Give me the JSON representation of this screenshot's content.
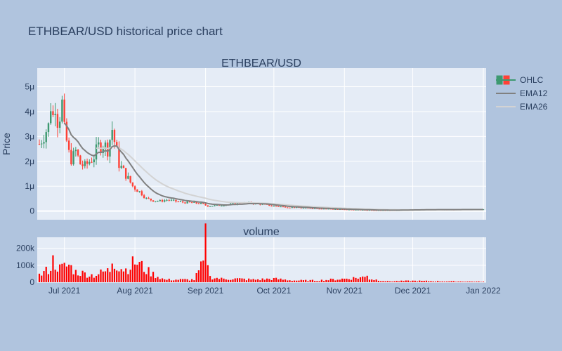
{
  "colors": {
    "background": "#b0c4de",
    "plot_bg": "#e5ecf6",
    "grid": "#ffffff",
    "increasing": "#3d9970",
    "decreasing": "#ff4136",
    "ema12": "#808080",
    "ema26": "#d3d3d3",
    "volume": "#ff0000",
    "text": "#2a3f5f"
  },
  "chart_data": [
    {
      "type": "candlestick",
      "title": "ETHBEAR/USD historical price chart",
      "subtitle": "ETHBEAR/USD",
      "ylabel": "Price",
      "ylim": [
        -3.5e-07,
        5.75e-06
      ],
      "yticks": [
        {
          "value": 0,
          "label": "0"
        },
        {
          "value": 1e-06,
          "label": "1μ"
        },
        {
          "value": 2e-06,
          "label": "2μ"
        },
        {
          "value": 3e-06,
          "label": "3μ"
        },
        {
          "value": 4e-06,
          "label": "4μ"
        },
        {
          "value": 5e-06,
          "label": "5μ"
        }
      ],
      "legend": {
        "placement": "top-right",
        "entries": [
          "OHLC",
          "EMA12",
          "EMA26"
        ]
      },
      "x_start": "2021-06-20",
      "x_end": "2022-01-01",
      "grid": true,
      "close_by_date": [
        [
          "2021-06-20",
          2.7e-06
        ],
        [
          "2021-06-22",
          3.1e-06
        ],
        [
          "2021-06-24",
          3.4e-06
        ],
        [
          "2021-06-25",
          4.3e-06
        ],
        [
          "2021-06-26",
          3.8e-06
        ],
        [
          "2021-06-27",
          4.4e-06
        ],
        [
          "2021-06-28",
          3.7e-06
        ],
        [
          "2021-06-29",
          3.9e-06
        ],
        [
          "2021-06-30",
          4.3e-06
        ],
        [
          "2021-07-01",
          3.2e-06
        ],
        [
          "2021-07-02",
          2.8e-06
        ],
        [
          "2021-07-03",
          2.3e-06
        ],
        [
          "2021-07-04",
          2.1e-06
        ],
        [
          "2021-07-05",
          2.2e-06
        ],
        [
          "2021-07-06",
          2.4e-06
        ],
        [
          "2021-07-08",
          1.9e-06
        ],
        [
          "2021-07-10",
          1.8e-06
        ],
        [
          "2021-07-12",
          2e-06
        ],
        [
          "2021-07-14",
          2.2e-06
        ],
        [
          "2021-07-16",
          2.6e-06
        ],
        [
          "2021-07-18",
          2.7e-06
        ],
        [
          "2021-07-20",
          2.5e-06
        ],
        [
          "2021-07-22",
          3.3e-06
        ],
        [
          "2021-07-23",
          2.8e-06
        ],
        [
          "2021-07-25",
          1.9e-06
        ],
        [
          "2021-07-27",
          1.6e-06
        ],
        [
          "2021-07-29",
          1.3e-06
        ],
        [
          "2021-07-31",
          1e-06
        ],
        [
          "2021-08-02",
          8.5e-07
        ],
        [
          "2021-08-04",
          7e-07
        ],
        [
          "2021-08-06",
          5e-07
        ],
        [
          "2021-08-09",
          4.2e-07
        ],
        [
          "2021-08-12",
          4e-07
        ],
        [
          "2021-08-15",
          4.5e-07
        ],
        [
          "2021-08-18",
          4e-07
        ],
        [
          "2021-08-22",
          3.5e-07
        ],
        [
          "2021-08-26",
          3.3e-07
        ],
        [
          "2021-08-30",
          3e-07
        ],
        [
          "2021-09-02",
          2e-07
        ],
        [
          "2021-09-06",
          2.2e-07
        ],
        [
          "2021-09-10",
          2.5e-07
        ],
        [
          "2021-09-15",
          3e-07
        ],
        [
          "2021-09-20",
          3.2e-07
        ],
        [
          "2021-09-25",
          2.8e-07
        ],
        [
          "2021-10-01",
          2e-07
        ],
        [
          "2021-10-08",
          1.5e-07
        ],
        [
          "2021-10-15",
          1.2e-07
        ],
        [
          "2021-10-22",
          1e-07
        ],
        [
          "2021-11-01",
          6e-08
        ],
        [
          "2021-11-10",
          4e-08
        ],
        [
          "2021-11-20",
          3e-08
        ],
        [
          "2021-12-01",
          5e-08
        ],
        [
          "2021-12-15",
          6e-08
        ],
        [
          "2022-01-01",
          6e-08
        ]
      ]
    },
    {
      "type": "bar",
      "title": "volume",
      "ylim": [
        0,
        265000
      ],
      "yticks": [
        {
          "value": 0,
          "label": "0"
        },
        {
          "value": 100000,
          "label": "100k"
        },
        {
          "value": 200000,
          "label": "200k"
        }
      ],
      "xticks": [
        {
          "date": "2021-07-01",
          "label": "Jul 2021"
        },
        {
          "date": "2021-08-01",
          "label": "Aug 2021"
        },
        {
          "date": "2021-09-01",
          "label": "Sep 2021"
        },
        {
          "date": "2021-10-01",
          "label": "Oct 2021"
        },
        {
          "date": "2021-11-01",
          "label": "Nov 2021"
        },
        {
          "date": "2021-12-01",
          "label": "Dec 2021"
        },
        {
          "date": "2022-01-01",
          "label": "Jan 2022"
        }
      ],
      "volume_by_date": [
        [
          "2021-06-20",
          40000
        ],
        [
          "2021-06-24",
          75000
        ],
        [
          "2021-06-25",
          90000
        ],
        [
          "2021-06-26",
          125000
        ],
        [
          "2021-06-29",
          80000
        ],
        [
          "2021-07-03",
          100000
        ],
        [
          "2021-07-06",
          60000
        ],
        [
          "2021-07-10",
          50000
        ],
        [
          "2021-07-14",
          40000
        ],
        [
          "2021-07-18",
          60000
        ],
        [
          "2021-07-21",
          70000
        ],
        [
          "2021-07-22",
          135000
        ],
        [
          "2021-07-25",
          90000
        ],
        [
          "2021-07-28",
          75000
        ],
        [
          "2021-08-01",
          120000
        ],
        [
          "2021-08-03",
          105000
        ],
        [
          "2021-08-06",
          70000
        ],
        [
          "2021-08-10",
          40000
        ],
        [
          "2021-08-14",
          15000
        ],
        [
          "2021-08-20",
          15000
        ],
        [
          "2021-08-27",
          15000
        ],
        [
          "2021-08-31",
          110000
        ],
        [
          "2021-09-01",
          250000
        ],
        [
          "2021-09-03",
          30000
        ],
        [
          "2021-09-08",
          20000
        ],
        [
          "2021-09-15",
          20000
        ],
        [
          "2021-09-22",
          15000
        ],
        [
          "2021-10-01",
          20000
        ],
        [
          "2021-10-10",
          10000
        ],
        [
          "2021-10-20",
          10000
        ],
        [
          "2021-11-01",
          20000
        ],
        [
          "2021-11-10",
          30000
        ],
        [
          "2021-11-11",
          50000
        ],
        [
          "2021-11-12",
          20000
        ],
        [
          "2021-11-20",
          5000
        ],
        [
          "2021-12-01",
          8000
        ],
        [
          "2021-12-15",
          5000
        ],
        [
          "2022-01-01",
          3000
        ]
      ]
    }
  ]
}
